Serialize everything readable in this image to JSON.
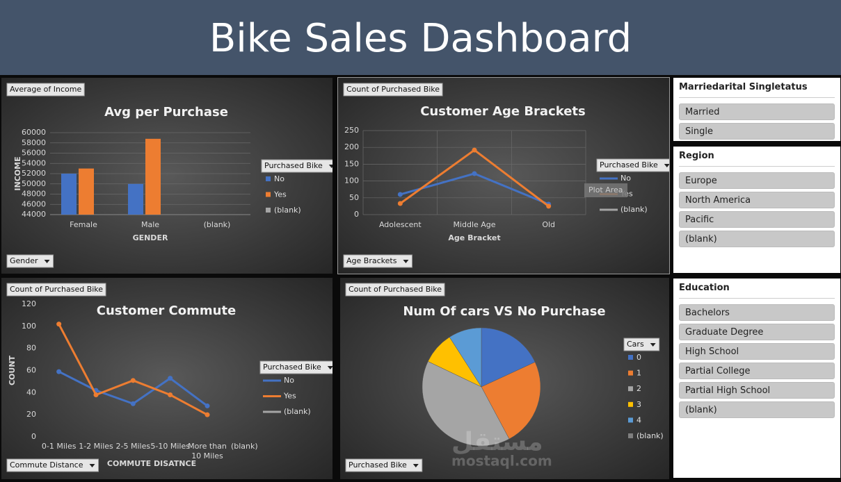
{
  "title": "Bike Sales Dashboard",
  "chart_data": [
    {
      "type": "bar",
      "title": "Avg per Purchase",
      "value_field": "Average of Income",
      "axis_field": "Gender",
      "legend_title": "Purchased Bike",
      "x_label": "GENDER",
      "y_label": "INCOME",
      "categories": [
        "Female",
        "Male",
        "(blank)"
      ],
      "series": [
        {
          "name": "No",
          "color": "#4472c4",
          "values": [
            52000,
            50000,
            null
          ]
        },
        {
          "name": "Yes",
          "color": "#ed7d31",
          "values": [
            53000,
            58800,
            null
          ]
        },
        {
          "name": "(blank)",
          "color": "#a5a5a5",
          "values": [
            null,
            null,
            null
          ]
        }
      ],
      "ylim": [
        44000,
        60000
      ],
      "yticks": [
        44000,
        46000,
        48000,
        50000,
        52000,
        54000,
        56000,
        58000,
        60000
      ],
      "grid": true
    },
    {
      "type": "line",
      "title": "Customer Age Brackets",
      "value_field": "Count of Purchased Bike",
      "axis_field": "Age Brackets",
      "legend_title": "Purchased Bike",
      "x_label": "Age Bracket",
      "tooltip": "Plot Area",
      "categories": [
        "Adolescent",
        "Middle Age",
        "Old"
      ],
      "series": [
        {
          "name": "No",
          "color": "#4472c4",
          "values": [
            60,
            122,
            31
          ]
        },
        {
          "name": "Yes",
          "color": "#ed7d31",
          "values": [
            33,
            192,
            25
          ]
        },
        {
          "name": "(blank)",
          "color": "#a5a5a5",
          "values": [
            null,
            null,
            null
          ]
        }
      ],
      "ylim": [
        0,
        250
      ],
      "yticks": [
        0,
        50,
        100,
        150,
        200,
        250
      ],
      "grid": true
    },
    {
      "type": "line",
      "title": "Customer Commute",
      "value_field": "Count of Purchased Bike",
      "axis_field": "Commute Distance",
      "legend_title": "Purchased Bike",
      "x_label": "COMMUTE DISATNCE",
      "y_label": "COUNT",
      "categories": [
        "0-1 Miles",
        "1-2 Miles",
        "2-5 Miles",
        "5-10 Miles",
        "More than 10 Miles",
        "(blank)"
      ],
      "series": [
        {
          "name": "No",
          "color": "#4472c4",
          "values": [
            59,
            42,
            30,
            53,
            28,
            null
          ]
        },
        {
          "name": "Yes",
          "color": "#ed7d31",
          "values": [
            102,
            38,
            51,
            38,
            20,
            null
          ]
        },
        {
          "name": "(blank)",
          "color": "#a5a5a5",
          "values": [
            null,
            null,
            null,
            null,
            null,
            null
          ]
        }
      ],
      "ylim": [
        0,
        120
      ],
      "yticks": [
        0,
        20,
        40,
        60,
        80,
        100,
        120
      ],
      "grid": false
    },
    {
      "type": "pie",
      "title": "Num Of cars VS No Purchase",
      "value_field": "Count of Purchased Bike",
      "axis_field": "Purchased Bike",
      "legend_title": "Cars",
      "categories": [
        "0",
        "1",
        "2",
        "3",
        "4",
        "(blank)"
      ],
      "values": [
        94,
        125,
        207,
        46,
        47,
        null
      ],
      "colors": [
        "#4472c4",
        "#ed7d31",
        "#a5a5a5",
        "#ffc000",
        "#5b9bd5",
        "#7f7f7f"
      ],
      "watermark": [
        "مستقل",
        "mostaql.com"
      ]
    }
  ],
  "slicers": [
    {
      "title": "Marriedarital Singletatus",
      "items": [
        "Married",
        "Single"
      ]
    },
    {
      "title": "Region",
      "items": [
        "Europe",
        "North America",
        "Pacific",
        "(blank)"
      ]
    },
    {
      "title": "Education",
      "items": [
        "Bachelors",
        "Graduate Degree",
        "High School",
        "Partial College",
        "Partial High School",
        "(blank)"
      ]
    }
  ]
}
